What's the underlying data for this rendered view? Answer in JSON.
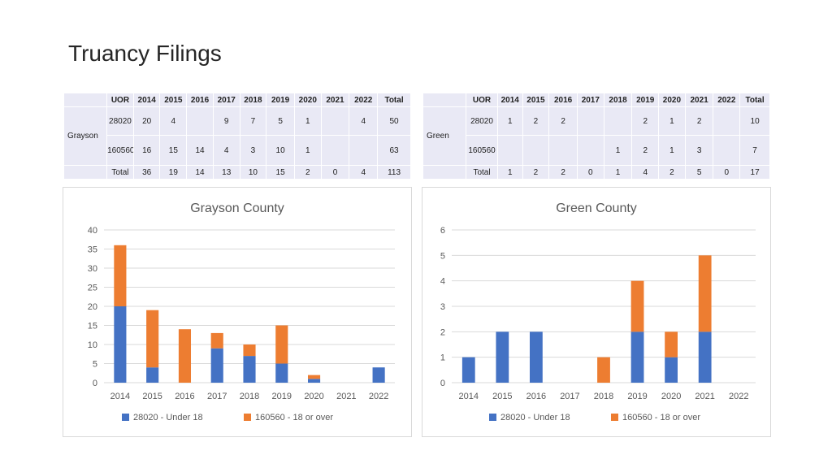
{
  "page": {
    "title": "Truancy Filings"
  },
  "tables": [
    {
      "county": "Grayson",
      "header": [
        "UOR",
        "2014",
        "2015",
        "2016",
        "2017",
        "2018",
        "2019",
        "2020",
        "2021",
        "2022",
        "Total"
      ],
      "rows": [
        [
          "28020",
          "20",
          "4",
          "",
          "9",
          "7",
          "5",
          "1",
          "",
          "4",
          "50"
        ],
        [
          "160560",
          "16",
          "15",
          "14",
          "4",
          "3",
          "10",
          "1",
          "",
          "",
          "63"
        ]
      ],
      "total": [
        "Total",
        "36",
        "19",
        "14",
        "13",
        "10",
        "15",
        "2",
        "0",
        "4",
        "113"
      ]
    },
    {
      "county": "Green",
      "header": [
        "UOR",
        "2014",
        "2015",
        "2016",
        "2017",
        "2018",
        "2019",
        "2020",
        "2021",
        "2022",
        "Total"
      ],
      "rows": [
        [
          "28020",
          "1",
          "2",
          "2",
          "",
          "",
          "2",
          "1",
          "2",
          "",
          "10"
        ],
        [
          "160560",
          "",
          "",
          "",
          "",
          "1",
          "2",
          "1",
          "3",
          "",
          "7"
        ]
      ],
      "total": [
        "Total",
        "1",
        "2",
        "2",
        "0",
        "1",
        "4",
        "2",
        "5",
        "0",
        "17"
      ]
    }
  ],
  "colors": {
    "series1": "#4472c4",
    "series2": "#ed7d31",
    "grid": "#d9d9d9",
    "table_bg": "#e9e9f5"
  },
  "chart_data": [
    {
      "type": "bar",
      "stacked": true,
      "title": "Grayson County",
      "categories": [
        "2014",
        "2015",
        "2016",
        "2017",
        "2018",
        "2019",
        "2020",
        "2021",
        "2022"
      ],
      "series": [
        {
          "name": "28020 - Under 18",
          "values": [
            20,
            4,
            0,
            9,
            7,
            5,
            1,
            0,
            4
          ]
        },
        {
          "name": "160560 - 18 or over",
          "values": [
            16,
            15,
            14,
            4,
            3,
            10,
            1,
            0,
            0
          ]
        }
      ],
      "ylim": [
        0,
        40
      ],
      "yticks": [
        0,
        5,
        10,
        15,
        20,
        25,
        30,
        35,
        40
      ],
      "grid": true,
      "legend": "bottom"
    },
    {
      "type": "bar",
      "stacked": true,
      "title": "Green County",
      "categories": [
        "2014",
        "2015",
        "2016",
        "2017",
        "2018",
        "2019",
        "2020",
        "2021",
        "2022"
      ],
      "series": [
        {
          "name": "28020 - Under 18",
          "values": [
            1,
            2,
            2,
            0,
            0,
            2,
            1,
            2,
            0
          ]
        },
        {
          "name": "160560 - 18 or over",
          "values": [
            0,
            0,
            0,
            0,
            1,
            2,
            1,
            3,
            0
          ]
        }
      ],
      "ylim": [
        0,
        6
      ],
      "yticks": [
        0,
        1,
        2,
        3,
        4,
        5,
        6
      ],
      "grid": true,
      "legend": "bottom"
    }
  ]
}
